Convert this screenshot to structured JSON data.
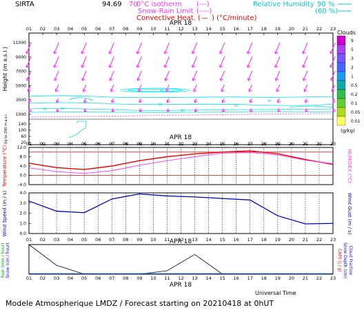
{
  "header": {
    "station": "SIRTA",
    "coords": "94.69",
    "coords_tail": "70",
    "legend_left": [
      {
        "label": "0°C isotherm",
        "sample": "(---)",
        "color": "#ff33ff"
      },
      {
        "label": "Snow-Rain Limit",
        "sample": "(----)",
        "color": "#ff33ff"
      },
      {
        "label": "Convective Heat. (",
        "sample": "—",
        "unit": ") (°C/minute)",
        "color": "#ee0000"
      }
    ],
    "legend_right": [
      {
        "label": "Relative Humidity",
        "sample": "90 %",
        "color": "#00cccc"
      },
      {
        "label": "",
        "sample": "(60 %)",
        "color": "#00cccc"
      }
    ]
  },
  "hours": [
    "01",
    "02",
    "03",
    "04",
    "05",
    "06",
    "07",
    "08",
    "09",
    "10",
    "11",
    "12",
    "13",
    "14",
    "15",
    "16",
    "17",
    "18",
    "19",
    "20",
    "21",
    "22",
    "23"
  ],
  "date_label": "APR 18",
  "clouds_scale": {
    "title": "Clouds",
    "unit": "(g/kg)",
    "levels": [
      "9",
      "5",
      "3",
      "2",
      "1",
      "0.5",
      "0.2",
      "0.1",
      "0.05",
      "0.01"
    ],
    "colors": [
      "#cc00cc",
      "#aa44ee",
      "#7755ff",
      "#4466ff",
      "#2299ee",
      "#11aaaa",
      "#33bb55",
      "#66cc33",
      "#aadd22",
      "#ffff66"
    ]
  },
  "footer": {
    "universal_time": "Universal Time",
    "model": "Modele Atmospherique LMDZ / Forecast starting on 20210418 at 0hUT"
  },
  "chart_data": [
    {
      "type": "wind-profile",
      "ylabel": "Height (m a.s.l.)",
      "ylabel_lower": "Up to 200 m a.s.l.",
      "yticks": [
        "11000",
        "9000",
        "7000",
        "5000",
        "3000",
        "1000",
        "140",
        "100",
        "60",
        "20"
      ],
      "ytick_values": [
        11000,
        9000,
        7000,
        5000,
        3000,
        1000
      ],
      "note": "Wind arrows (magenta) and relative humidity contours (cyan); no cloud shading present",
      "isotherm_height_m": 1000,
      "rh_contour_labels": [
        "90",
        "60"
      ]
    },
    {
      "type": "line",
      "ylabel": "Temperature (°C)",
      "ylabel_right": "HUMIDEX (°C)",
      "ylim": [
        -4,
        12
      ],
      "yticks": [
        "-4.0",
        "0.0",
        "4.0",
        "8.0",
        "12.0"
      ],
      "reference_lines": [
        0,
        10
      ],
      "series": [
        {
          "color": "#ee0000",
          "x": [
            1,
            3,
            5,
            7,
            9,
            11,
            13,
            15,
            17,
            19,
            21,
            23
          ],
          "values": [
            5.2,
            3.3,
            2.5,
            4.0,
            6.3,
            8.0,
            9.2,
            10.0,
            10.5,
            9.3,
            6.8,
            4.7
          ]
        },
        {
          "color": "#ff33ff",
          "x": [
            1,
            3,
            5,
            7,
            9,
            11,
            13,
            15,
            17,
            19,
            21,
            23
          ],
          "values": [
            3.2,
            1.6,
            0.8,
            2.0,
            4.3,
            6.3,
            8.0,
            9.5,
            9.8,
            8.8,
            6.5,
            5.0
          ]
        }
      ]
    },
    {
      "type": "line",
      "ylabel": "Wind Speed (m / s)",
      "ylabel_right": "Wind Gust (m / s)",
      "ylim": [
        0,
        4
      ],
      "yticks": [
        "0.0",
        "1.0",
        "2.0",
        "3.0",
        "4.0"
      ],
      "series": [
        {
          "color": "#0000cc",
          "x": [
            1,
            3,
            5,
            7,
            9,
            11,
            13,
            15,
            17,
            19,
            21,
            23
          ],
          "values": [
            3.2,
            2.2,
            2.05,
            3.4,
            3.9,
            3.7,
            3.6,
            3.45,
            3.3,
            1.75,
            0.95,
            1.0
          ]
        }
      ]
    },
    {
      "type": "line",
      "ylabel_left": [
        "Rain (mm / hour)",
        "Snow (cm / hour)"
      ],
      "ylabel_right": [
        "CAPE (J / g)",
        "Snow Depth (cm)",
        "Cloud Fraction"
      ],
      "series": [
        {
          "color": "#000000",
          "x": [
            1,
            3,
            5,
            7,
            9,
            11,
            13,
            15,
            17,
            19,
            21,
            23
          ],
          "values": [
            0.6,
            0.18,
            0,
            0,
            0,
            0.07,
            0.4,
            0,
            0,
            0,
            0,
            0
          ]
        }
      ]
    }
  ]
}
